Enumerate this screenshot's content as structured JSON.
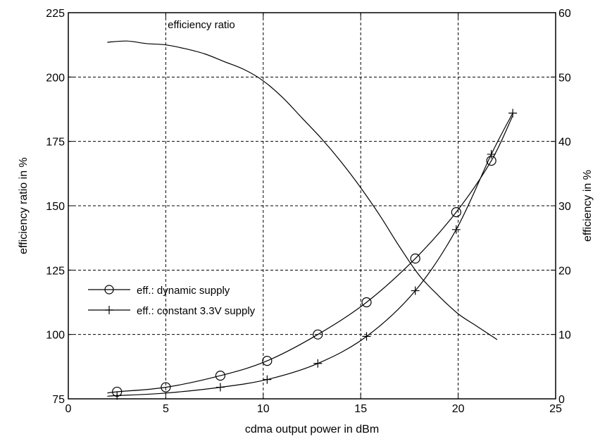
{
  "chart_data": {
    "type": "line",
    "title": "",
    "xlabel": "cdma output power in dBm",
    "ylabel": "efficiency ratio in %",
    "ylabel_right": "efficiency in %",
    "xlim": [
      0,
      25
    ],
    "ylim": [
      75,
      225
    ],
    "ylim_right": [
      0,
      60
    ],
    "xticks": [
      0,
      5,
      10,
      15,
      20,
      25
    ],
    "yticks": [
      75,
      100,
      125,
      150,
      175,
      200,
      225
    ],
    "yticks_right": [
      0,
      10,
      20,
      30,
      40,
      50,
      60
    ],
    "grid": true,
    "legend_position": "middle-left",
    "annotations": [
      {
        "text": "efficiency ratio",
        "x": 5.1,
        "y": 219
      }
    ],
    "series": [
      {
        "name": "",
        "axis": "left",
        "marker": "none",
        "x": [
          2.0,
          3.0,
          4.0,
          5.0,
          6.0,
          7.0,
          8.0,
          9.0,
          10.0,
          11.0,
          12.0,
          13.0,
          14.0,
          15.0,
          16.0,
          17.0,
          18.0,
          19.0,
          20.0,
          21.0,
          22.0
        ],
        "y": [
          213.5,
          214,
          213,
          212.5,
          211,
          209,
          206,
          203,
          198.5,
          192,
          184,
          176,
          167,
          157,
          146,
          134,
          123,
          115,
          108,
          103,
          98
        ]
      },
      {
        "name": "eff.: dynamic supply",
        "axis": "right",
        "marker": "circle",
        "x": [
          2.5,
          5.0,
          7.8,
          10.2,
          12.8,
          15.3,
          17.8,
          19.9,
          21.7
        ],
        "y": [
          1.1,
          1.8,
          3.6,
          5.9,
          10.0,
          15.0,
          21.8,
          29.0,
          37.0
        ],
        "curve_x": [
          2.0,
          2.5,
          5.0,
          7.8,
          10.2,
          12.8,
          15.3,
          17.8,
          19.9,
          21.7,
          22.8
        ],
        "curve_y": [
          0.9,
          1.1,
          1.8,
          3.6,
          5.9,
          10.0,
          15.0,
          21.8,
          29.0,
          37.0,
          44.0
        ]
      },
      {
        "name": "eff.: constant 3.3V supply",
        "axis": "right",
        "marker": "plus",
        "x": [
          2.5,
          7.8,
          10.2,
          12.8,
          15.3,
          17.8,
          19.9,
          21.7,
          22.8
        ],
        "y": [
          0.5,
          1.8,
          3.0,
          5.5,
          9.7,
          16.8,
          26.3,
          38.0,
          44.4
        ],
        "curve_x": [
          2.0,
          2.5,
          5.0,
          7.8,
          10.2,
          12.8,
          15.3,
          17.8,
          19.9,
          21.7,
          22.8
        ],
        "curve_y": [
          0.4,
          0.5,
          0.9,
          1.8,
          3.0,
          5.5,
          9.7,
          16.8,
          26.3,
          38.0,
          44.4
        ]
      }
    ]
  }
}
